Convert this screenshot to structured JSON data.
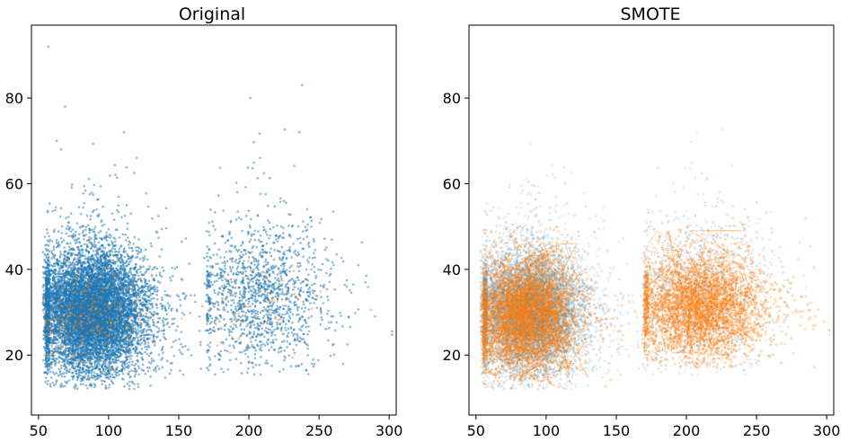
{
  "chart_data": [
    {
      "type": "scatter",
      "title": "Original",
      "xlabel": "",
      "ylabel": "",
      "xlim": [
        45,
        305
      ],
      "ylim": [
        6,
        97
      ],
      "xticks": [
        50,
        100,
        150,
        200,
        250,
        300
      ],
      "yticks": [
        20,
        40,
        60,
        80
      ],
      "grid": false,
      "series": [
        {
          "color": "#1f77b4",
          "alpha": 0.5,
          "clusters": [
            {
              "x_range": [
                55,
                135
              ],
              "y_range": [
                15,
                48
              ],
              "x_center": 88,
              "y_center": 30,
              "count": 9000
            },
            {
              "x_range": [
                170,
                265
              ],
              "y_range": [
                18,
                58
              ],
              "x_center": 210,
              "y_center": 34,
              "count": 1400
            }
          ],
          "outliers": [
            {
              "x": 57,
              "y": 92
            },
            {
              "x": 69,
              "y": 78
            },
            {
              "x": 201,
              "y": 80
            },
            {
              "x": 238,
              "y": 83
            },
            {
              "x": 236,
              "y": 72
            },
            {
              "x": 63,
              "y": 70
            },
            {
              "x": 66,
              "y": 68
            },
            {
              "x": 208,
              "y": 66
            },
            {
              "x": 120,
              "y": 66
            },
            {
              "x": 111,
              "y": 72
            },
            {
              "x": 290,
              "y": 29
            },
            {
              "x": 278,
              "y": 41
            },
            {
              "x": 283,
              "y": 37
            }
          ]
        },
        {
          "color": "#ff7f0e",
          "alpha": 0.5,
          "clusters": [
            {
              "x_range": [
                55,
                125
              ],
              "y_range": [
                18,
                42
              ],
              "x_center": 85,
              "y_center": 29,
              "count": 180
            },
            {
              "x_range": [
                175,
                255
              ],
              "y_range": [
                22,
                45
              ],
              "x_center": 210,
              "y_center": 31,
              "count": 60
            }
          ]
        }
      ]
    },
    {
      "type": "scatter",
      "title": "SMOTE",
      "xlabel": "",
      "ylabel": "",
      "xlim": [
        45,
        305
      ],
      "ylim": [
        6,
        97
      ],
      "xticks": [
        50,
        100,
        150,
        200,
        250,
        300
      ],
      "yticks": [
        20,
        40,
        60,
        80
      ],
      "grid": false,
      "series": [
        {
          "color": "#1f77b4",
          "alpha": 0.15,
          "clusters": [
            {
              "x_range": [
                55,
                135
              ],
              "y_range": [
                15,
                48
              ],
              "x_center": 88,
              "y_center": 30,
              "count": 9000
            },
            {
              "x_range": [
                170,
                265
              ],
              "y_range": [
                18,
                58
              ],
              "x_center": 210,
              "y_center": 34,
              "count": 1400
            }
          ]
        },
        {
          "color": "#ff7f0e",
          "alpha": 0.3,
          "synthetic": true,
          "clusters": [
            {
              "x_range": [
                55,
                130
              ],
              "y_range": [
                15,
                46
              ],
              "x_center": 85,
              "y_center": 29,
              "count": 4500
            },
            {
              "x_range": [
                170,
                270
              ],
              "y_range": [
                20,
                49
              ],
              "x_center": 210,
              "y_center": 31,
              "count": 3500
            }
          ]
        }
      ]
    }
  ]
}
